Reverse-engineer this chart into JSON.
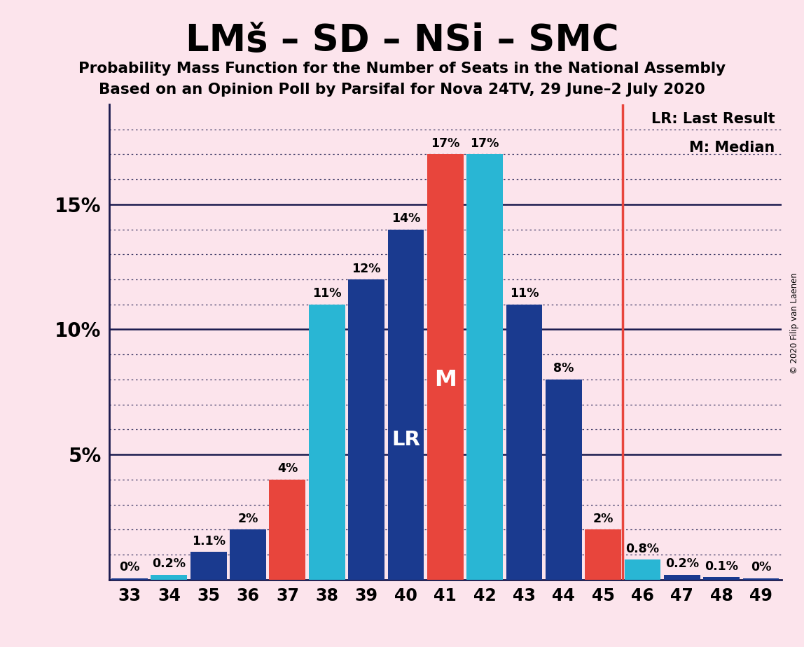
{
  "title": "LMš – SD – NSi – SMC",
  "subtitle1": "Probability Mass Function for the Number of Seats in the National Assembly",
  "subtitle2": "Based on an Opinion Poll by Parsifal for Nova 24TV, 29 June–2 July 2020",
  "copyright": "© 2020 Filip van Laenen",
  "seats": [
    33,
    34,
    35,
    36,
    37,
    38,
    39,
    40,
    41,
    42,
    43,
    44,
    45,
    46,
    47,
    48,
    49
  ],
  "values": [
    0.05,
    0.2,
    1.1,
    2.0,
    4.0,
    11.0,
    12.0,
    14.0,
    17.0,
    17.0,
    11.0,
    8.0,
    2.0,
    0.8,
    0.2,
    0.1,
    0.05
  ],
  "labels": [
    "0%",
    "0.2%",
    "1.1%",
    "2%",
    "4%",
    "11%",
    "12%",
    "14%",
    "17%",
    "17%",
    "11%",
    "8%",
    "2%",
    "0.8%",
    "0.2%",
    "0.1%",
    "0%"
  ],
  "bar_colors": [
    "#1a3a8f",
    "#29b6d4",
    "#1a3a8f",
    "#1a3a8f",
    "#e8453c",
    "#29b6d4",
    "#1a3a8f",
    "#1a3a8f",
    "#e8453c",
    "#29b6d4",
    "#1a3a8f",
    "#1a3a8f",
    "#e8453c",
    "#29b6d4",
    "#1a3a8f",
    "#1a3a8f",
    "#1a3a8f"
  ],
  "lr_seat": 40,
  "median_seat": 41,
  "vline_x": 45.5,
  "background_color": "#fce4ec",
  "ylim_max": 19.0,
  "ytick_vals": [
    5,
    10,
    15
  ],
  "ytick_labels": [
    "5%",
    "10%",
    "15%"
  ],
  "legend_lr": "LR: Last Result",
  "legend_m": "M: Median",
  "red_color": "#e8453c",
  "cyan_color": "#29b6d4",
  "darkblue_color": "#1a3a8f",
  "bar_width": 0.92
}
